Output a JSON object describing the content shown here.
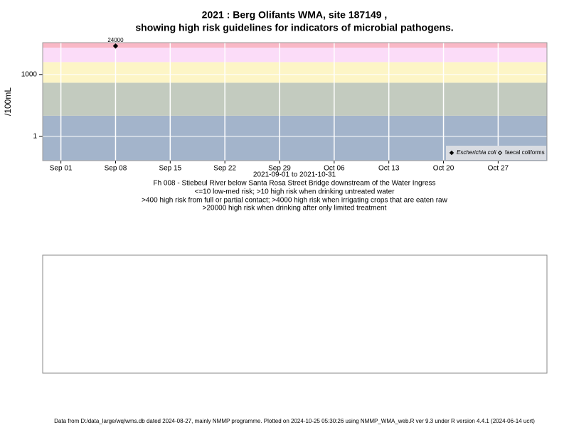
{
  "chart_data": {
    "type": "scatter",
    "title": "2021 : Berg Olifants WMA, site 187149 ,",
    "subtitle": "showing high risk guidelines for indicators of microbial pathogens.",
    "y_label": "/100mL",
    "x_label": "2021-09-01 to 2021-10-31",
    "notes": [
      "Fh 008 - Stiebeul River below Santa Rosa Street Bridge downstream of the Water Ingress",
      "<=10 low-med risk; >10 high risk when drinking untreated water",
      ">400 high risk from full or partial contact; >4000 high risk when irrigating crops that are eaten raw",
      ">20000 high risk when drinking after only limited treatment"
    ],
    "footer": "Data from D:/data_large/wq/wms.db dated 2024-08-27, mainly NMMP programme. Plotted on 2024-10-25 05:30:26 using NMMP_WMA_web.R ver 9.3 under R version 4.4.1 (2024-06-14 ucrt)",
    "log_scale_y": true,
    "grid": true,
    "xlim": [
      "2021-08-29T16:00",
      "2021-11-02T06:00"
    ],
    "ylim": [
      0.067,
      35000
    ],
    "xticks": [
      {
        "value": "2021-09-01",
        "label": "Sep 01"
      },
      {
        "value": "2021-09-08",
        "label": "Sep 08"
      },
      {
        "value": "2021-09-15",
        "label": "Sep 15"
      },
      {
        "value": "2021-09-22",
        "label": "Sep 22"
      },
      {
        "value": "2021-09-29",
        "label": "Sep 29"
      },
      {
        "value": "2021-10-06",
        "label": "Oct 06"
      },
      {
        "value": "2021-10-13",
        "label": "Oct 13"
      },
      {
        "value": "2021-10-20",
        "label": "Oct 20"
      },
      {
        "value": "2021-10-27",
        "label": "Oct 27"
      }
    ],
    "yticks": [
      1,
      1000
    ],
    "band_breaks": [
      10,
      400,
      4000,
      20000
    ],
    "band_colors": [
      "#a3b4cb",
      "#c3cbbf",
      "#fdf5c6",
      "#fbdcf8",
      "#f9b8c6"
    ],
    "legend": "bottom-right",
    "series": [
      {
        "name": "Escherichia coli",
        "color": "#000000",
        "marker": "filled",
        "x": [
          "2021-09-08"
        ],
        "values": [
          24000
        ],
        "value_labels": [
          "24000"
        ]
      },
      {
        "name": "faecal coliforms",
        "color": "#000000",
        "marker": "open",
        "x": [],
        "values": []
      }
    ]
  }
}
